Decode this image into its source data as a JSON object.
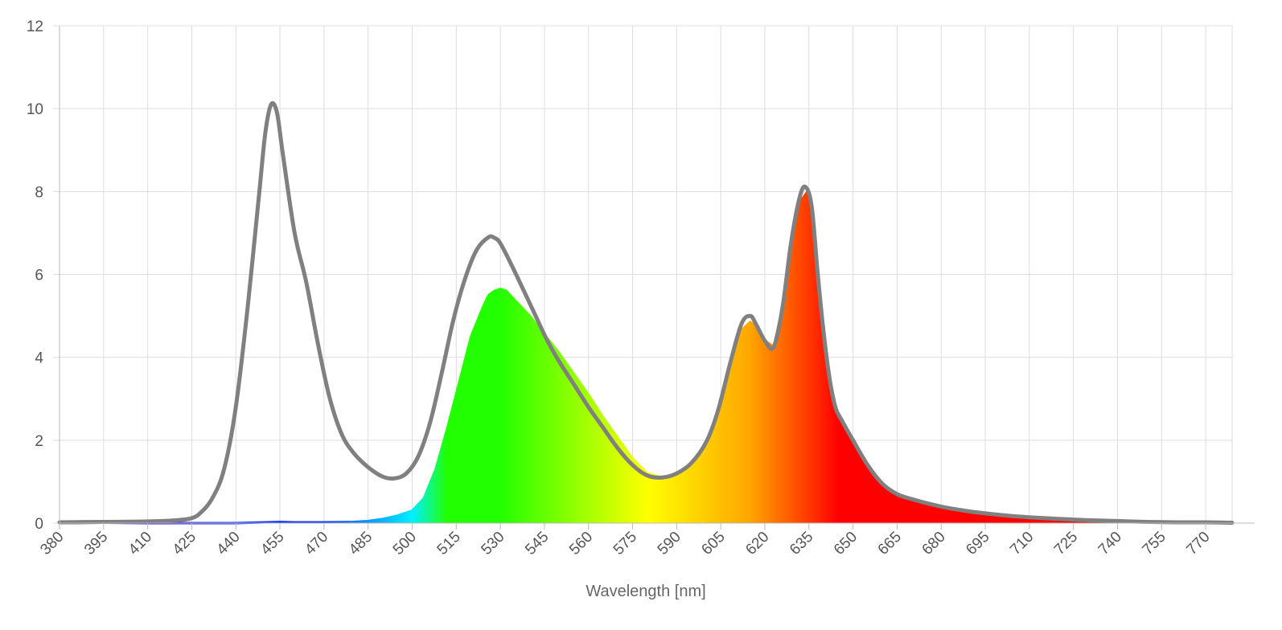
{
  "chart_data": {
    "type": "area",
    "xlabel": "Wavelength [nm]",
    "ylabel": "",
    "xlim": [
      380,
      779
    ],
    "ylim": [
      0,
      12
    ],
    "grid": true,
    "x_ticks": [
      380,
      395,
      410,
      425,
      440,
      455,
      470,
      485,
      500,
      515,
      530,
      545,
      560,
      575,
      590,
      605,
      620,
      635,
      650,
      665,
      680,
      695,
      710,
      725,
      740,
      755,
      770
    ],
    "y_ticks": [
      0,
      2,
      4,
      6,
      8,
      10,
      12
    ],
    "fill_colors": {
      "start_color": "#7a00c8",
      "blue": "#1a3cff",
      "cyan": "#00f0ff",
      "green": "#22ff00",
      "yellow": "#ffff00",
      "orange": "#ffa500",
      "red": "#ff0000",
      "end_color": "#800000",
      "outline": "#808080"
    },
    "series": [
      {
        "style": "gray outline curve",
        "x": [
          380,
          395,
          410,
          420,
          425,
          428,
          432,
          436,
          440,
          444,
          448,
          450,
          452,
          454,
          456,
          460,
          464,
          468,
          472,
          476,
          480,
          485,
          490,
          494,
          498,
          502,
          506,
          510,
          514,
          518,
          522,
          526,
          528,
          530,
          534,
          538,
          542,
          546,
          550,
          555,
          560,
          565,
          570,
          575,
          580,
          585,
          590,
          595,
          600,
          604,
          608,
          612,
          615,
          617,
          620,
          623,
          626,
          629,
          632,
          634,
          636,
          638,
          640,
          642,
          644,
          646,
          650,
          655,
          660,
          665,
          670,
          680,
          690,
          700,
          710,
          720,
          730,
          740,
          750,
          760,
          770,
          779
        ],
        "y": [
          0.02,
          0.03,
          0.04,
          0.07,
          0.12,
          0.25,
          0.6,
          1.3,
          2.8,
          5.2,
          8.0,
          9.4,
          10.1,
          9.9,
          8.9,
          7.0,
          5.8,
          4.3,
          3.0,
          2.15,
          1.7,
          1.35,
          1.12,
          1.08,
          1.2,
          1.6,
          2.4,
          3.6,
          4.9,
          5.9,
          6.6,
          6.9,
          6.88,
          6.75,
          6.2,
          5.6,
          5.0,
          4.4,
          3.9,
          3.35,
          2.8,
          2.3,
          1.8,
          1.4,
          1.15,
          1.1,
          1.2,
          1.45,
          1.95,
          2.7,
          3.8,
          4.8,
          5.0,
          4.8,
          4.4,
          4.25,
          5.2,
          6.8,
          7.9,
          8.1,
          7.6,
          6.0,
          4.6,
          3.5,
          2.8,
          2.5,
          2.0,
          1.4,
          0.95,
          0.7,
          0.58,
          0.4,
          0.28,
          0.2,
          0.14,
          0.1,
          0.07,
          0.05,
          0.03,
          0.02,
          0.02,
          0.01
        ]
      },
      {
        "style": "wavelength-colored filled area",
        "x": [
          380,
          395,
          410,
          425,
          440,
          450,
          455,
          460,
          470,
          480,
          485,
          490,
          495,
          500,
          504,
          508,
          512,
          516,
          520,
          524,
          526,
          528,
          530,
          532,
          536,
          540,
          545,
          550,
          555,
          560,
          565,
          570,
          575,
          580,
          585,
          590,
          595,
          600,
          604,
          608,
          612,
          615,
          617,
          620,
          623,
          626,
          629,
          632,
          634,
          636,
          638,
          640,
          642,
          644,
          646,
          650,
          655,
          660,
          665,
          670,
          680,
          690,
          700,
          710,
          720,
          730,
          740,
          750,
          760,
          770,
          779
        ],
        "y": [
          0.0,
          0.01,
          0.0,
          0.0,
          0.0,
          0.02,
          0.03,
          0.02,
          0.02,
          0.03,
          0.05,
          0.1,
          0.18,
          0.3,
          0.6,
          1.3,
          2.3,
          3.4,
          4.5,
          5.2,
          5.5,
          5.6,
          5.65,
          5.6,
          5.3,
          5.0,
          4.55,
          4.1,
          3.6,
          3.1,
          2.55,
          2.05,
          1.55,
          1.2,
          1.1,
          1.2,
          1.45,
          1.95,
          2.7,
          3.7,
          4.65,
          4.85,
          4.75,
          4.4,
          4.25,
          5.2,
          6.7,
          7.75,
          7.95,
          7.5,
          6.0,
          4.6,
          3.5,
          2.8,
          2.5,
          2.0,
          1.4,
          0.95,
          0.7,
          0.58,
          0.4,
          0.28,
          0.2,
          0.14,
          0.1,
          0.07,
          0.05,
          0.03,
          0.02,
          0.02,
          0.01
        ]
      }
    ]
  }
}
